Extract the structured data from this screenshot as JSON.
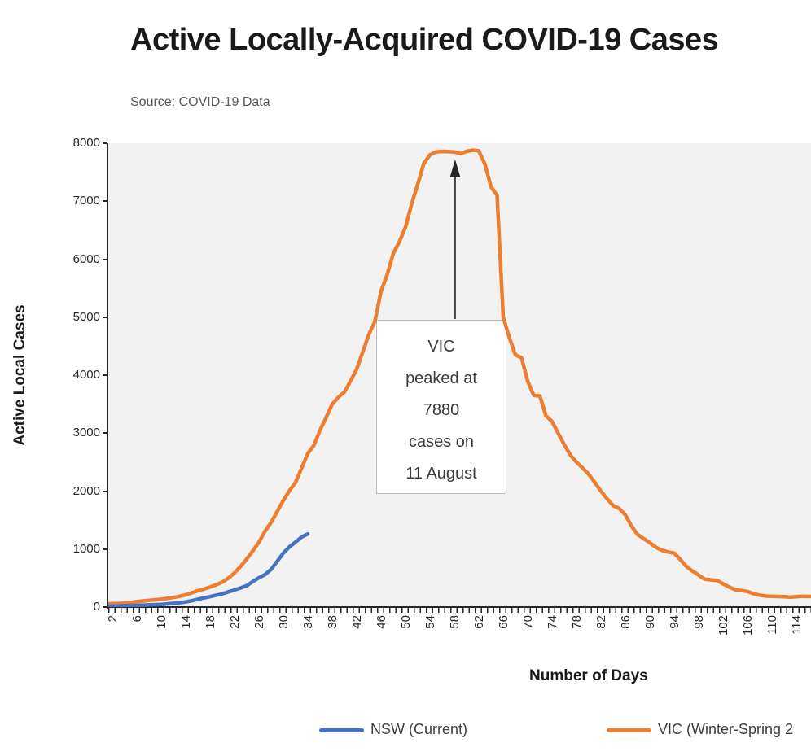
{
  "header": {
    "title": "Active Locally-Acquired COVID-19 Cases",
    "subtitle": "Source: COVID-19 Data"
  },
  "colors": {
    "nsw_blue": "#4472C4",
    "vic_orange": "#ED7D31",
    "plot_background": "#F2F2F2",
    "axis": "#262626"
  },
  "annotation": {
    "lines": [
      "VIC",
      "peaked at",
      "7880",
      "cases on",
      "11 August"
    ]
  },
  "legend": [
    {
      "label": "NSW (Current)",
      "color": "#4472C4"
    },
    {
      "label": "VIC (Winter-Spring 2",
      "color": "#ED7D31"
    }
  ],
  "chart_data": {
    "type": "line",
    "title": "Active Locally-Acquired COVID-19 Cases",
    "subtitle": "Source: COVID-19 Data",
    "xlabel": "Number of Days",
    "ylabel": "Active Local Cases",
    "ylim": [
      0,
      8000
    ],
    "xlim": [
      1,
      117
    ],
    "grid": false,
    "legend_position": "bottom",
    "y_ticks": [
      0,
      1000,
      2000,
      3000,
      4000,
      5000,
      6000,
      7000,
      8000
    ],
    "x_tick_labels": [
      2,
      6,
      10,
      14,
      18,
      22,
      26,
      30,
      34,
      38,
      42,
      46,
      50,
      54,
      58,
      62,
      66,
      70,
      74,
      78,
      82,
      86,
      90,
      94,
      98,
      102,
      106,
      110,
      114
    ],
    "series": [
      {
        "name": "NSW (Current)",
        "color": "#4472C4",
        "x_start": 1,
        "x_step": 1,
        "values": [
          10,
          15,
          18,
          22,
          26,
          30,
          34,
          38,
          42,
          46,
          55,
          65,
          75,
          88,
          110,
          135,
          158,
          180,
          205,
          228,
          262,
          295,
          330,
          368,
          440,
          505,
          560,
          650,
          790,
          930,
          1040,
          1120,
          1210,
          1260
        ]
      },
      {
        "name": "VIC (Winter-Spring 2",
        "color": "#ED7D31",
        "x_start": 1,
        "x_step": 1,
        "values": [
          55,
          60,
          62,
          68,
          80,
          95,
          105,
          115,
          125,
          135,
          150,
          165,
          185,
          210,
          245,
          280,
          310,
          345,
          385,
          430,
          500,
          590,
          700,
          830,
          970,
          1120,
          1310,
          1460,
          1650,
          1840,
          2010,
          2150,
          2400,
          2650,
          2790,
          3050,
          3270,
          3500,
          3620,
          3710,
          3900,
          4100,
          4400,
          4700,
          4930,
          5450,
          5730,
          6100,
          6300,
          6550,
          6950,
          7290,
          7650,
          7800,
          7850,
          7860,
          7855,
          7850,
          7820,
          7860,
          7880,
          7870,
          7640,
          7250,
          7100,
          5000,
          4650,
          4350,
          4300,
          3900,
          3650,
          3640,
          3300,
          3200,
          3000,
          2800,
          2620,
          2500,
          2400,
          2290,
          2150,
          2000,
          1870,
          1750,
          1700,
          1590,
          1400,
          1250,
          1180,
          1110,
          1030,
          980,
          950,
          930,
          820,
          700,
          620,
          550,
          480,
          470,
          460,
          400,
          345,
          300,
          285,
          270,
          230,
          205,
          190,
          185,
          183,
          178,
          170,
          180,
          185,
          183,
          185
        ]
      }
    ],
    "annotation": {
      "text": "VIC peaked at 7880 cases on 11 August",
      "peak_value": 7880,
      "peak_label_date": "11 August"
    }
  }
}
